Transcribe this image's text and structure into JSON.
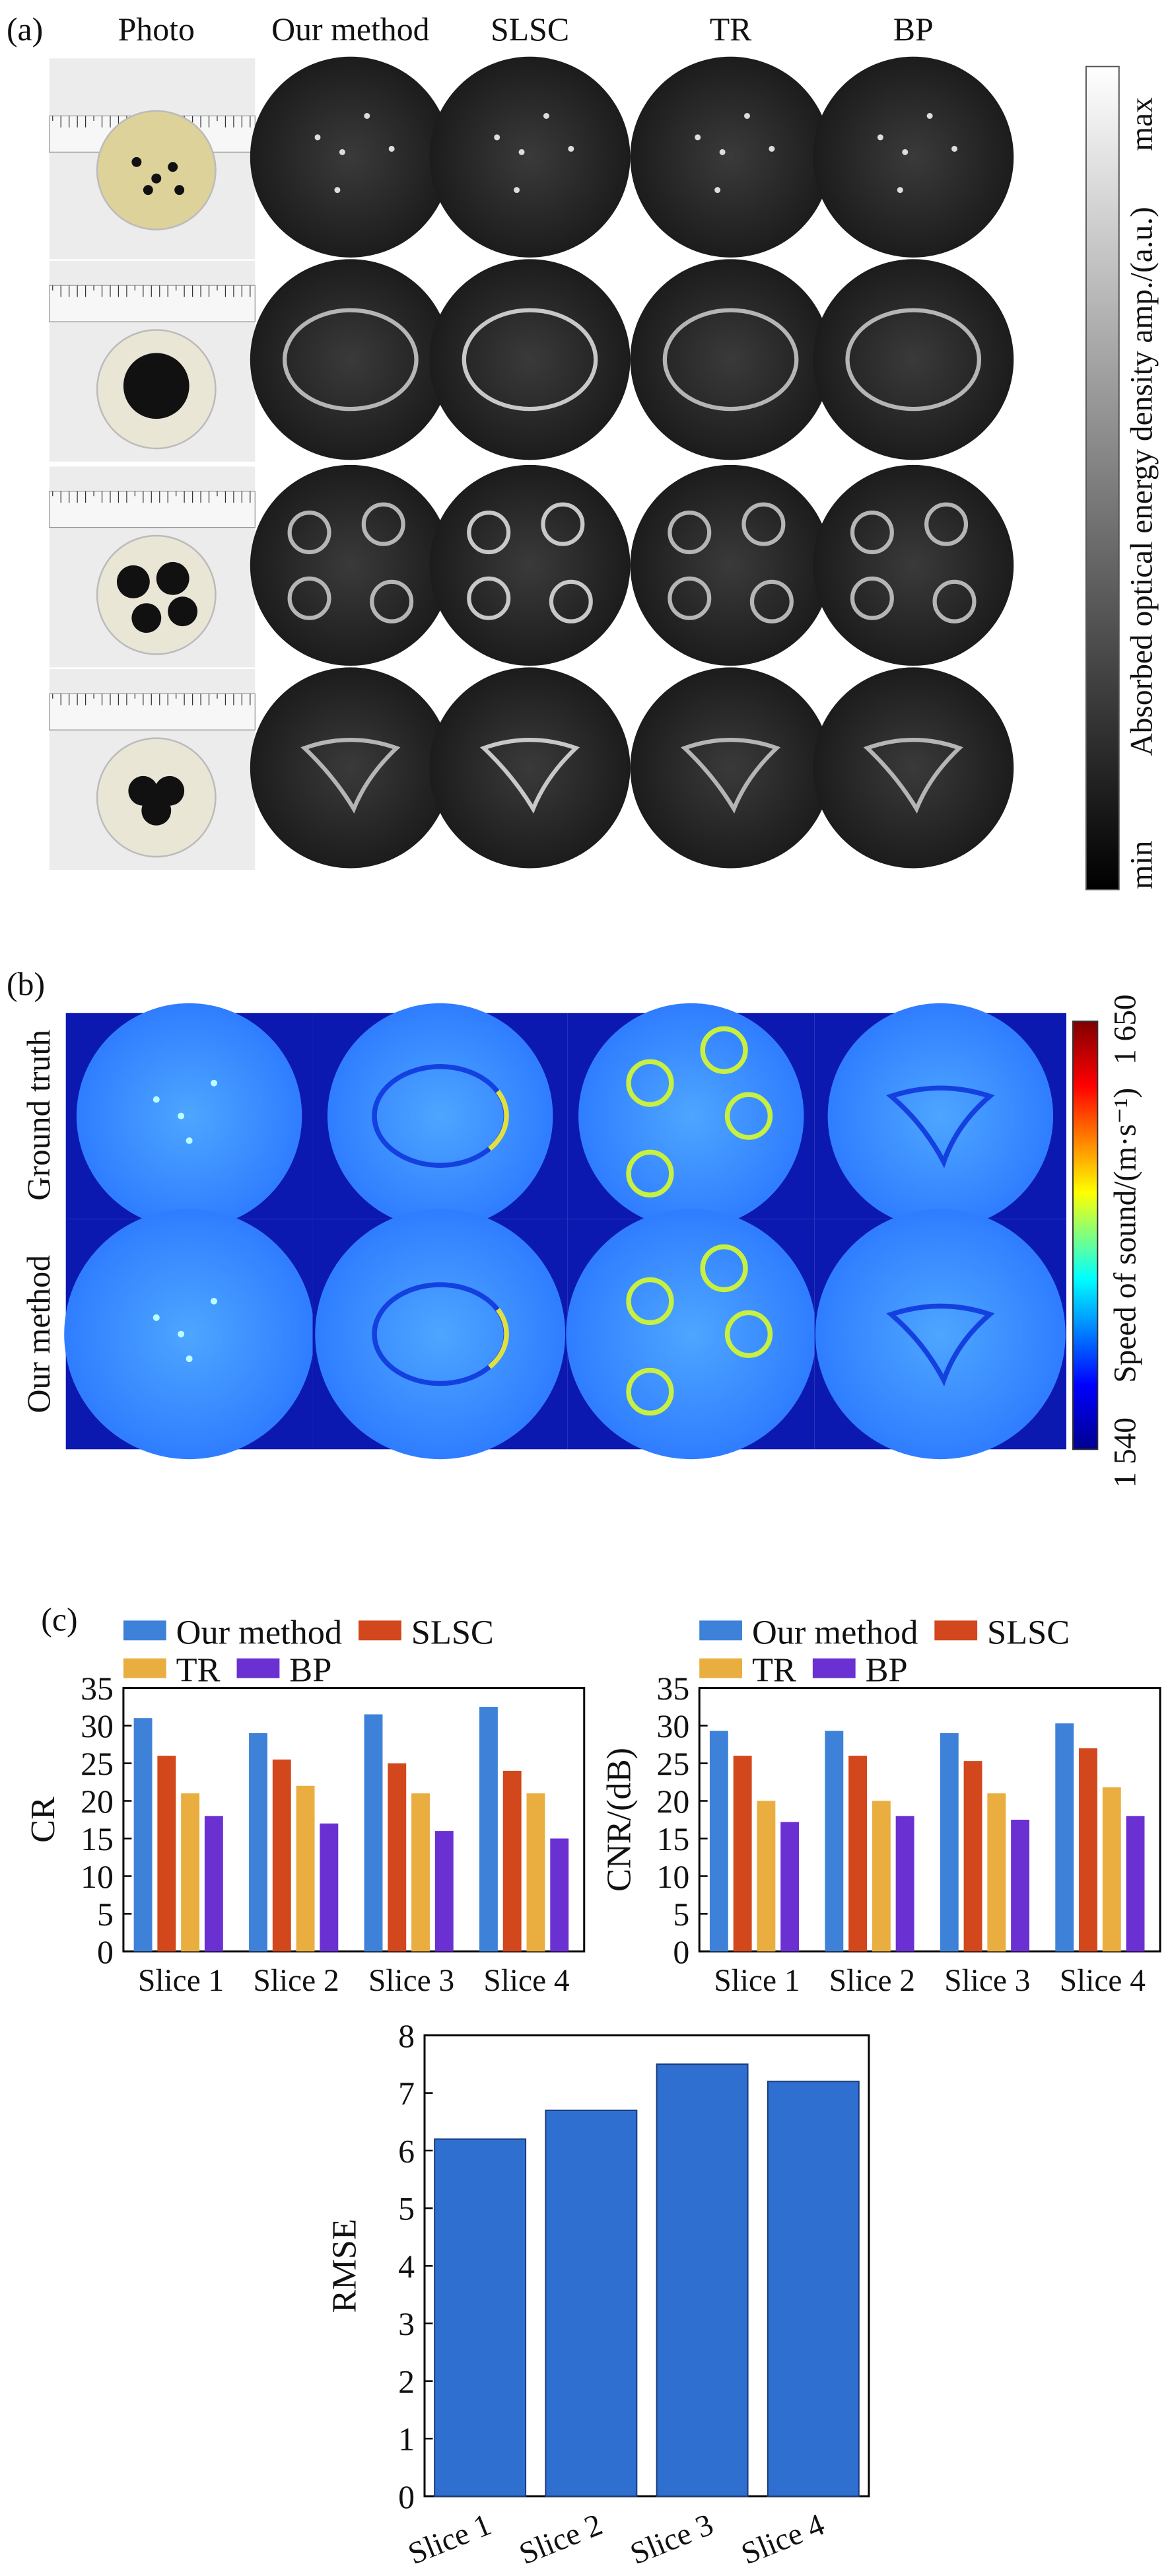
{
  "panel_a": {
    "label": "(a)",
    "columns": [
      "Photo",
      "Our method",
      "SLSC",
      "TR",
      "BP"
    ],
    "colorbar_max": "max",
    "colorbar_min": "min",
    "colorbar_label": "Absorbed optical energy density amp./(a.u.)"
  },
  "panel_b": {
    "label": "(b)",
    "rows": [
      "Ground truth",
      "Our method"
    ],
    "colorbar_max": "1 650",
    "colorbar_min": "1 540",
    "colorbar_label": "Speed of sound/(m·s⁻¹)"
  },
  "panel_c": {
    "label": "(c)"
  },
  "chart_data": [
    {
      "type": "bar",
      "ylabel": "CR",
      "categories": [
        "Slice 1",
        "Slice 2",
        "Slice 3",
        "Slice 4"
      ],
      "series": [
        {
          "name": "Our method",
          "color": "#3d82d8",
          "values": [
            31,
            29,
            31.5,
            32.5
          ]
        },
        {
          "name": "SLSC",
          "color": "#d2471c",
          "values": [
            26,
            25.5,
            25,
            24
          ]
        },
        {
          "name": "TR",
          "color": "#e9ae3f",
          "values": [
            21,
            22,
            21,
            21
          ]
        },
        {
          "name": "BP",
          "color": "#6b30d2",
          "values": [
            18,
            17,
            16,
            15
          ]
        }
      ],
      "ylim": [
        0,
        35
      ],
      "yticks": [
        0,
        5,
        10,
        15,
        20,
        25,
        30,
        35
      ]
    },
    {
      "type": "bar",
      "ylabel": "CNR/(dB)",
      "categories": [
        "Slice 1",
        "Slice 2",
        "Slice 3",
        "Slice 4"
      ],
      "series": [
        {
          "name": "Our method",
          "color": "#3d82d8",
          "values": [
            29.3,
            29.3,
            29,
            30.3
          ]
        },
        {
          "name": "SLSC",
          "color": "#d2471c",
          "values": [
            26,
            26,
            25.3,
            27
          ]
        },
        {
          "name": "TR",
          "color": "#e9ae3f",
          "values": [
            20,
            20,
            21,
            21.8
          ]
        },
        {
          "name": "BP",
          "color": "#6b30d2",
          "values": [
            17.2,
            18,
            17.5,
            18
          ]
        }
      ],
      "ylim": [
        0,
        35
      ],
      "yticks": [
        0,
        5,
        10,
        15,
        20,
        25,
        30,
        35
      ]
    },
    {
      "type": "bar",
      "ylabel": "RMSE",
      "categories": [
        "Slice 1",
        "Slice 2",
        "Slice 3",
        "Slice 4"
      ],
      "color": "#2f6fd0",
      "values": [
        6.2,
        6.7,
        7.5,
        7.2
      ],
      "ylim": [
        0,
        8
      ],
      "yticks": [
        0,
        1,
        2,
        3,
        4,
        5,
        6,
        7,
        8
      ]
    }
  ]
}
